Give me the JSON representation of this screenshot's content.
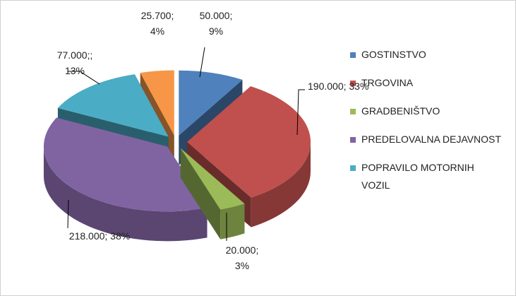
{
  "chart_data": {
    "type": "pie3d",
    "categories": [
      "GOSTINSTVO",
      "TRGOVINA",
      "GRADBENIŠTVO",
      "PREDELOVALNA DEJAVNOST",
      "POPRAVILO MOTORNIH VOZIL",
      null
    ],
    "values": [
      50000,
      190000,
      20000,
      218000,
      77000,
      25700
    ],
    "value_labels": [
      [
        "50.000;",
        "9%"
      ],
      [
        "190.000; 33%"
      ],
      [
        "20.000;",
        "3%"
      ],
      [
        "218.000; 38%"
      ],
      [
        "77.000;;",
        "13%"
      ],
      [
        "25.700;",
        "4%"
      ]
    ],
    "colors": [
      "#4f81bd",
      "#c0504d",
      "#9bbb59",
      "#8064a2",
      "#4bacc6",
      "#f79646"
    ],
    "legend": "right"
  }
}
